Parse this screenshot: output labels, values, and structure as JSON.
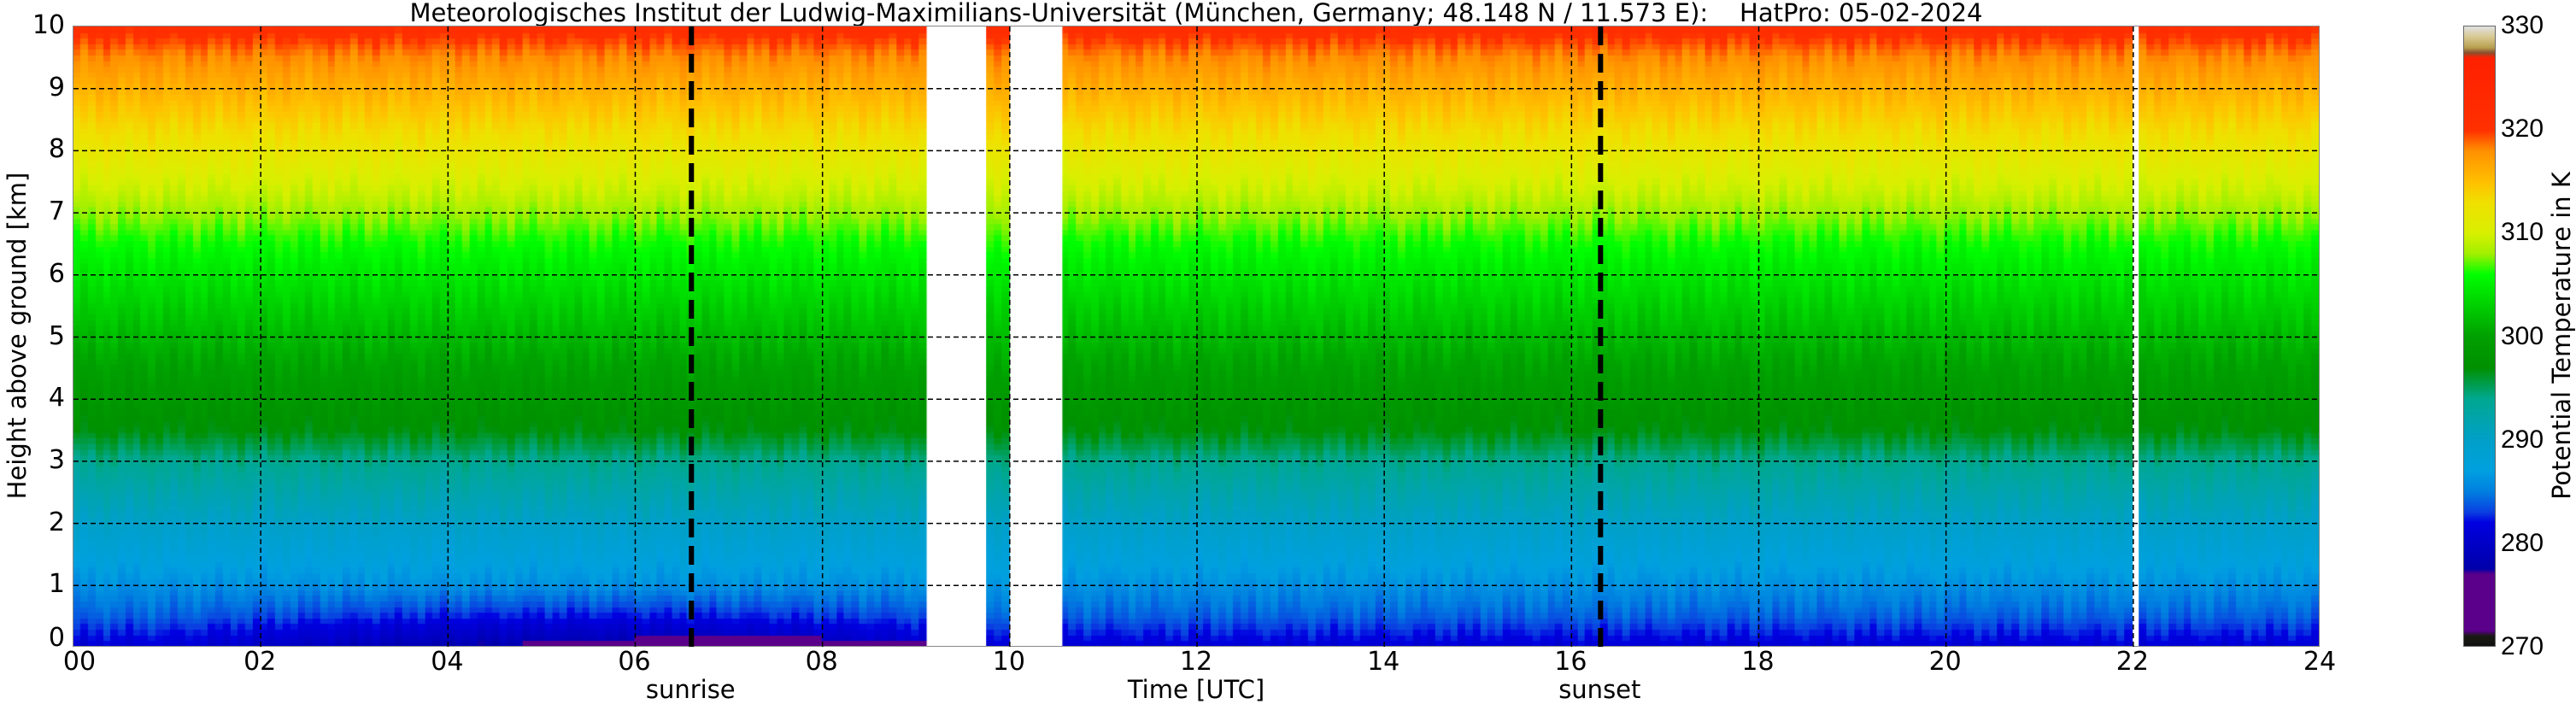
{
  "chart_data": {
    "type": "heatmap",
    "title": "Meteorologisches Institut der Ludwig-Maximilians-Universität (München, Germany; 48.148 N / 11.573 E):    HatPro: 05-02-2024",
    "xlabel": "Time [UTC]",
    "ylabel": "Height above ground [km]",
    "xlim": [
      0,
      24
    ],
    "ylim": [
      0,
      10
    ],
    "x_ticks": [
      0,
      2,
      4,
      6,
      8,
      10,
      12,
      14,
      16,
      18,
      20,
      22,
      24
    ],
    "x_tick_labels": [
      "00",
      "02",
      "04",
      "06",
      "08",
      "10",
      "12",
      "14",
      "16",
      "18",
      "20",
      "22",
      "24"
    ],
    "y_ticks": [
      0,
      1,
      2,
      3,
      4,
      5,
      6,
      7,
      8,
      9,
      10
    ],
    "y_tick_labels": [
      "0",
      "1",
      "2",
      "3",
      "4",
      "5",
      "6",
      "7",
      "8",
      "9",
      "10"
    ],
    "grid": true,
    "colorbar": {
      "label": "Potential Temperature in K",
      "range": [
        270,
        330
      ],
      "ticks": [
        270,
        280,
        290,
        300,
        310,
        320,
        330
      ],
      "tick_labels": [
        "270",
        "280",
        "290",
        "300",
        "310",
        "320",
        "330"
      ]
    },
    "profile_height_km": [
      0,
      0.15,
      0.5,
      1.0,
      1.5,
      2.0,
      3.0,
      3.5,
      4.5,
      5.5,
      6.5,
      7.5,
      8.5,
      9.5,
      10
    ],
    "profile_theta_K": [
      281,
      282,
      284,
      286,
      288,
      290,
      294,
      297,
      300,
      303,
      306,
      310,
      314,
      318,
      321
    ],
    "surface_cold_pool": {
      "start_h": 4.8,
      "end_h": 9.2,
      "min_theta_K": 276,
      "depth_km": 0.15
    },
    "missing_data_intervals_h": [
      [
        9.12,
        9.73
      ],
      [
        10.04,
        10.57
      ],
      [
        22.03,
        22.06
      ]
    ],
    "events": [
      {
        "label": "sunrise",
        "time_h": 6.6
      },
      {
        "label": "sunset",
        "time_h": 16.31
      }
    ]
  }
}
